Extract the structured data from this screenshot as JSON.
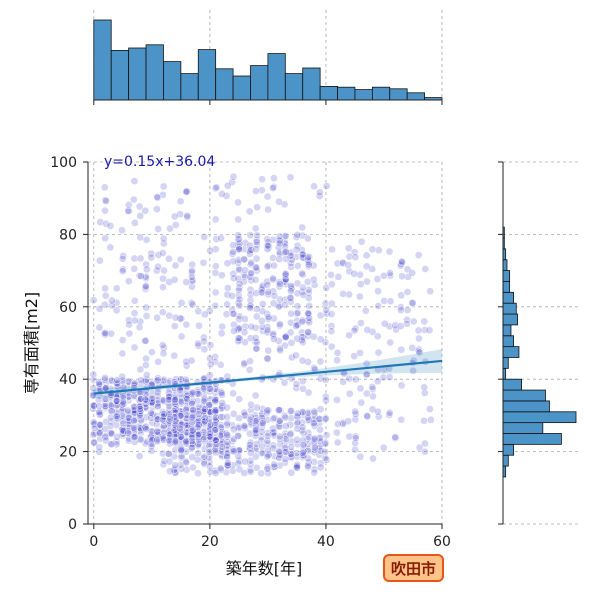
{
  "chart_data": {
    "type": "scatter",
    "title": "",
    "xlabel": "築年数[年]",
    "ylabel": "専有面積[m2]",
    "xlim": [
      -1,
      60
    ],
    "ylim": [
      0,
      100
    ],
    "x_ticks": [
      0,
      20,
      40,
      60
    ],
    "y_ticks": [
      0,
      20,
      40,
      60,
      80,
      100
    ],
    "grid": true,
    "annotation": "y=0.15x+36.04",
    "badge": "吹田市",
    "colors": {
      "points": "#3a3acc",
      "regression": "#1f77b4",
      "histogram": "#4c94c8",
      "badge_fill": "#ffc48a",
      "badge_border": "#e8551a",
      "grid": "#aaaaaa"
    },
    "regression": {
      "slope": 0.15,
      "intercept": 36.04
    },
    "clusters": [
      {
        "x_min": 0,
        "x_max": 22,
        "y_min": 22,
        "y_max": 40,
        "count": 520
      },
      {
        "x_min": 12,
        "x_max": 40,
        "y_min": 14,
        "y_max": 32,
        "count": 360
      },
      {
        "x_min": 24,
        "x_max": 38,
        "y_min": 50,
        "y_max": 80,
        "count": 190
      },
      {
        "x_min": 0,
        "x_max": 58,
        "y_min": 40,
        "y_max": 78,
        "count": 330
      },
      {
        "x_min": 0,
        "x_max": 58,
        "y_min": 18,
        "y_max": 40,
        "count": 160
      },
      {
        "x_min": 0,
        "x_max": 40,
        "y_min": 78,
        "y_max": 96,
        "count": 70
      }
    ],
    "x_histogram": {
      "bin_start": 0,
      "bin_width": 3,
      "counts": [
        100,
        62,
        65,
        69,
        48,
        33,
        63,
        39,
        30,
        43,
        58,
        33,
        40,
        17,
        16,
        13,
        16,
        14,
        9,
        3
      ]
    },
    "y_histogram": {
      "bin_start": 10,
      "bin_width": 3,
      "counts": [
        0,
        2,
        4,
        8,
        44,
        30,
        55,
        35,
        32,
        14,
        2,
        4,
        12,
        8,
        6,
        11,
        10,
        8,
        5,
        5,
        3,
        2,
        1,
        1,
        0,
        0,
        0,
        0,
        0,
        0
      ]
    }
  }
}
